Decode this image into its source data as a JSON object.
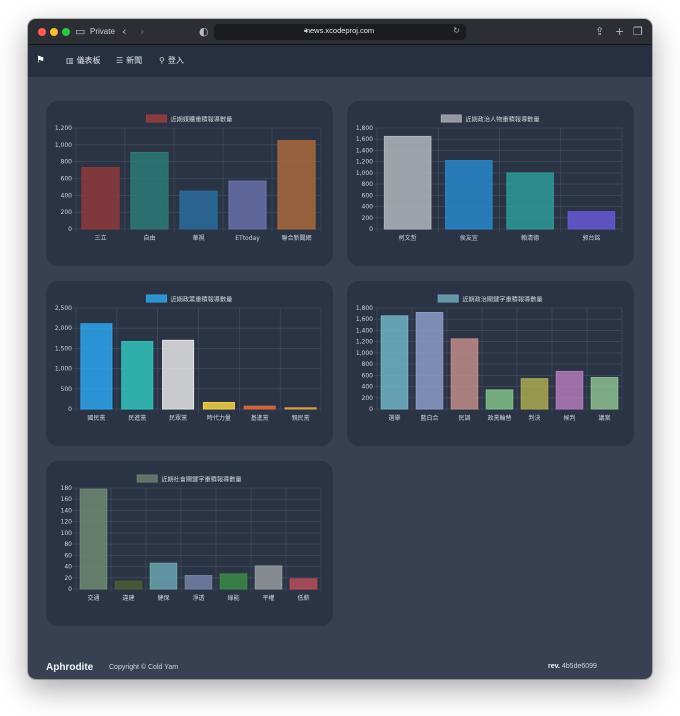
{
  "browser": {
    "private_label": "Private",
    "url": "news.xcodeproj.com"
  },
  "nav": {
    "items": [
      {
        "label": "儀表板",
        "icon": "bar-chart-icon"
      },
      {
        "label": "新聞",
        "icon": "list-icon"
      },
      {
        "label": "登入",
        "icon": "key-icon"
      }
    ]
  },
  "footer": {
    "brand": "Aphrodite",
    "copyright": "Copyright © Cold Yam",
    "rev_label": "rev.",
    "rev_value": "4b5de6099"
  },
  "chart_data": [
    {
      "type": "bar",
      "title": "近期媒體重積報導數量",
      "legend_color": "#9b3d3d",
      "categories": [
        "三立",
        "自由",
        "華視",
        "ETtoday",
        "聯合新聞網"
      ],
      "values": [
        730,
        910,
        450,
        570,
        1050
      ],
      "colors": [
        "#8e3a3a",
        "#2c7a7a",
        "#2a6c9a",
        "#6870a8",
        "#a8693a"
      ],
      "ylim": [
        0,
        1200
      ],
      "yticks": [
        0,
        200,
        400,
        600,
        800,
        1000,
        1200
      ],
      "ytick_labels": [
        "0",
        "200",
        "400",
        "600",
        "800",
        "1,000",
        "1,200"
      ]
    },
    {
      "type": "bar",
      "title": "近期政治人物重積報導數量",
      "legend_color": "#a8aab0",
      "categories": [
        "柯文哲",
        "侯友宜",
        "賴清德",
        "郭台銘"
      ],
      "values": [
        1650,
        1220,
        1000,
        310
      ],
      "colors": [
        "#b3b6bb",
        "#2787c9",
        "#2e9a98",
        "#6757d6"
      ],
      "ylim": [
        0,
        1800
      ],
      "yticks": [
        0,
        200,
        400,
        600,
        800,
        1000,
        1200,
        1400,
        1600,
        1800
      ],
      "ytick_labels": [
        "0",
        "200",
        "400",
        "600",
        "800",
        "1,000",
        "1,200",
        "1,400",
        "1,600",
        "1,800"
      ]
    },
    {
      "type": "bar",
      "title": "近期政黨重積報導數量",
      "legend_color": "#2fa3e6",
      "categories": [
        "國民黨",
        "民進黨",
        "民眾黨",
        "時代力量",
        "基進黨",
        "親民黨"
      ],
      "values": [
        2110,
        1670,
        1700,
        160,
        70,
        30
      ],
      "colors": [
        "#2ba4ec",
        "#2fc3bb",
        "#e5e5e5",
        "#f2d444",
        "#e06a3a",
        "#d9a640"
      ],
      "ylim": [
        0,
        2500
      ],
      "yticks": [
        0,
        500,
        1000,
        1500,
        2000,
        2500
      ],
      "ytick_labels": [
        "0",
        "500",
        "1,000",
        "1,500",
        "2,000",
        "2,500"
      ]
    },
    {
      "type": "bar",
      "title": "近期政治關鍵字重積報導數量",
      "legend_color": "#6aa8b8",
      "categories": [
        "選舉",
        "藍白合",
        "民調",
        "政黨輪替",
        "判決",
        "候判",
        "議案"
      ],
      "values": [
        1660,
        1720,
        1250,
        340,
        540,
        670,
        560
      ],
      "colors": [
        "#70b4c4",
        "#8c9cc8",
        "#c08c88",
        "#80c088",
        "#aaaa50",
        "#b07ab8",
        "#8cc090"
      ],
      "ylim": [
        0,
        1800
      ],
      "yticks": [
        0,
        200,
        400,
        600,
        800,
        1000,
        1200,
        1400,
        1600,
        1800
      ],
      "ytick_labels": [
        "0",
        "200",
        "400",
        "600",
        "800",
        "1,000",
        "1,200",
        "1,400",
        "1,600",
        "1,800"
      ]
    },
    {
      "type": "bar",
      "title": "近期社會關鍵字重積報導數量",
      "legend_color": "#6b8070",
      "categories": [
        "交通",
        "違建",
        "健保",
        "淨透",
        "綠能",
        "平權",
        "低薪"
      ],
      "values": [
        178,
        14,
        46,
        24,
        27,
        41,
        18
      ],
      "colors": [
        "#6e8a72",
        "#4b5e36",
        "#6aa4b0",
        "#7483a6",
        "#3b8a46",
        "#95999e",
        "#b74e5c"
      ],
      "ylim": [
        0,
        180
      ],
      "yticks": [
        0,
        20,
        40,
        60,
        80,
        100,
        120,
        140,
        160,
        180
      ],
      "ytick_labels": [
        "0",
        "20",
        "40",
        "60",
        "80",
        "100",
        "120",
        "140",
        "160",
        "180"
      ]
    }
  ]
}
